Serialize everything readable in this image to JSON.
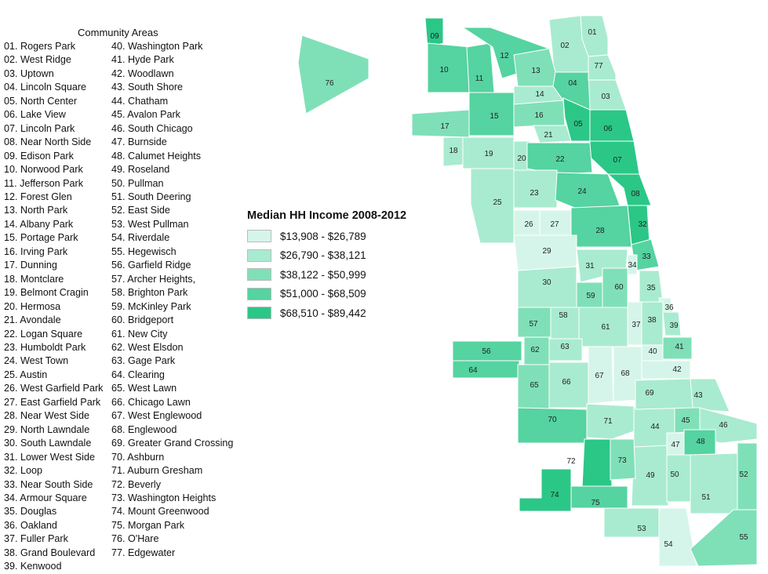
{
  "areas_title": "Community Areas",
  "areas_col1": [
    "01. Rogers Park",
    "02. West Ridge",
    "03. Uptown",
    "04. Lincoln Square",
    "05. North Center",
    "06. Lake View",
    "07. Lincoln Park",
    "08. Near North Side",
    "09. Edison Park",
    "10. Norwood Park",
    "11. Jefferson Park",
    "12. Forest Glen",
    "13. North Park",
    "14. Albany Park",
    "15. Portage Park",
    "16. Irving Park",
    "17. Dunning",
    "18. Montclare",
    "19. Belmont Cragin",
    "20. Hermosa",
    "21. Avondale",
    "22. Logan Square",
    "23. Humboldt Park",
    "24. West Town",
    "25. Austin",
    "26. West Garfield Park",
    "27. East Garfield Park",
    "28. Near West Side",
    "29. North Lawndale",
    "30. South Lawndale",
    "31. Lower West Side",
    "32. Loop",
    "33. Near South Side",
    "34. Armour Square",
    "35. Douglas",
    "36. Oakland",
    "37. Fuller Park",
    "38. Grand Boulevard",
    "39. Kenwood"
  ],
  "areas_col2": [
    "40. Washington Park",
    "41. Hyde Park",
    "42. Woodlawn",
    "43. South Shore",
    "44. Chatham",
    "45. Avalon Park",
    "46. South Chicago",
    "47. Burnside",
    "48. Calumet Heights",
    "49. Roseland",
    "50. Pullman",
    "51. South Deering",
    "52. East Side",
    "53. West Pullman",
    "54. Riverdale",
    "55. Hegewisch",
    "56. Garfield Ridge",
    "57. Archer Heights,",
    "58. Brighton Park",
    "59. McKinley Park",
    "60. Bridgeport",
    "61. New City",
    "62. West Elsdon",
    "63. Gage Park",
    "64. Clearing",
    "65. West Lawn",
    "66. Chicago Lawn",
    "67. West Englewood",
    "68. Englewood",
    "69. Greater Grand Crossing",
    "70. Ashburn",
    "71. Auburn Gresham",
    "72. Beverly",
    "73. Washington Heights",
    "74. Mount Greenwood",
    "75. Morgan Park",
    "76. O'Hare",
    "77. Edgewater"
  ],
  "legend": {
    "title": "Median HH Income 2008-2012",
    "classes": [
      {
        "label": "$13,908 - $26,789",
        "color": "#d6f5ea"
      },
      {
        "label": "$26,790 - $38,121",
        "color": "#a9ebd0"
      },
      {
        "label": "$38,122 - $50,999",
        "color": "#7fe0b8"
      },
      {
        "label": "$51,000 - $68,509",
        "color": "#55d3a0"
      },
      {
        "label": "$68,510 - $89,442",
        "color": "#2bc787"
      }
    ]
  },
  "map": {
    "areas": [
      {
        "id": "01",
        "cls": 1
      },
      {
        "id": "02",
        "cls": 1
      },
      {
        "id": "03",
        "cls": 1
      },
      {
        "id": "04",
        "cls": 3
      },
      {
        "id": "05",
        "cls": 4
      },
      {
        "id": "06",
        "cls": 4
      },
      {
        "id": "07",
        "cls": 4
      },
      {
        "id": "08",
        "cls": 4
      },
      {
        "id": "09",
        "cls": 4
      },
      {
        "id": "10",
        "cls": 3
      },
      {
        "id": "11",
        "cls": 3
      },
      {
        "id": "12",
        "cls": 3
      },
      {
        "id": "13",
        "cls": 2
      },
      {
        "id": "14",
        "cls": 1
      },
      {
        "id": "15",
        "cls": 3
      },
      {
        "id": "16",
        "cls": 2
      },
      {
        "id": "17",
        "cls": 2
      },
      {
        "id": "18",
        "cls": 1
      },
      {
        "id": "19",
        "cls": 1
      },
      {
        "id": "20",
        "cls": 1
      },
      {
        "id": "21",
        "cls": 1
      },
      {
        "id": "22",
        "cls": 3
      },
      {
        "id": "23",
        "cls": 1
      },
      {
        "id": "24",
        "cls": 3
      },
      {
        "id": "25",
        "cls": 1
      },
      {
        "id": "26",
        "cls": 0
      },
      {
        "id": "27",
        "cls": 0
      },
      {
        "id": "28",
        "cls": 3
      },
      {
        "id": "29",
        "cls": 0
      },
      {
        "id": "30",
        "cls": 1
      },
      {
        "id": "31",
        "cls": 1
      },
      {
        "id": "32",
        "cls": 4
      },
      {
        "id": "33",
        "cls": 3
      },
      {
        "id": "34",
        "cls": 0
      },
      {
        "id": "35",
        "cls": 1
      },
      {
        "id": "36",
        "cls": 0
      },
      {
        "id": "37",
        "cls": 0
      },
      {
        "id": "38",
        "cls": 1
      },
      {
        "id": "39",
        "cls": 1
      },
      {
        "id": "40",
        "cls": 0
      },
      {
        "id": "41",
        "cls": 2
      },
      {
        "id": "42",
        "cls": 0
      },
      {
        "id": "43",
        "cls": 1
      },
      {
        "id": "44",
        "cls": 1
      },
      {
        "id": "45",
        "cls": 2
      },
      {
        "id": "46",
        "cls": 1
      },
      {
        "id": "47",
        "cls": 0
      },
      {
        "id": "48",
        "cls": 3
      },
      {
        "id": "49",
        "cls": 1
      },
      {
        "id": "50",
        "cls": 1
      },
      {
        "id": "51",
        "cls": 1
      },
      {
        "id": "52",
        "cls": 2
      },
      {
        "id": "53",
        "cls": 1
      },
      {
        "id": "54",
        "cls": 0
      },
      {
        "id": "55",
        "cls": 2
      },
      {
        "id": "56",
        "cls": 3
      },
      {
        "id": "57",
        "cls": 2
      },
      {
        "id": "58",
        "cls": 1
      },
      {
        "id": "59",
        "cls": 2
      },
      {
        "id": "60",
        "cls": 2
      },
      {
        "id": "61",
        "cls": 1
      },
      {
        "id": "62",
        "cls": 2
      },
      {
        "id": "63",
        "cls": 1
      },
      {
        "id": "64",
        "cls": 3
      },
      {
        "id": "65",
        "cls": 2
      },
      {
        "id": "66",
        "cls": 1
      },
      {
        "id": "67",
        "cls": 0
      },
      {
        "id": "68",
        "cls": 0
      },
      {
        "id": "69",
        "cls": 1
      },
      {
        "id": "70",
        "cls": 3
      },
      {
        "id": "71",
        "cls": 1
      },
      {
        "id": "72",
        "cls": 4
      },
      {
        "id": "73",
        "cls": 2
      },
      {
        "id": "74",
        "cls": 4
      },
      {
        "id": "75",
        "cls": 3
      },
      {
        "id": "76",
        "cls": 2
      },
      {
        "id": "77",
        "cls": 1
      }
    ]
  }
}
